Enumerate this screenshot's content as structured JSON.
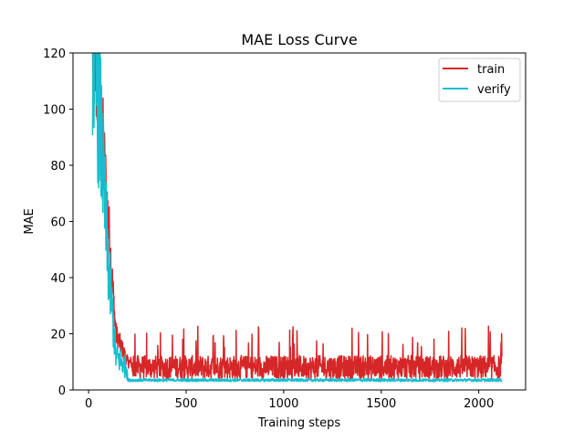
{
  "chart_data": {
    "type": "line",
    "title": "MAE Loss Curve",
    "xlabel": "Training steps",
    "ylabel": "MAE",
    "xlim": [
      -80,
      2240
    ],
    "ylim": [
      0,
      120
    ],
    "xticks": [
      0,
      500,
      1000,
      1500,
      2000
    ],
    "yticks": [
      0,
      20,
      40,
      60,
      80,
      100,
      120
    ],
    "grid": false,
    "legend_position": "top-right",
    "x_range": [
      20,
      2120
    ],
    "series": [
      {
        "name": "train",
        "color": "#d62728",
        "description": "rapid decay from above 120 to ~10 by step ~200, then noisy plateau oscillating mostly between ~4 and ~15 with spikes to ~23",
        "keypoints": [
          {
            "x": 20,
            "y": 125
          },
          {
            "x": 60,
            "y": 100
          },
          {
            "x": 100,
            "y": 60
          },
          {
            "x": 140,
            "y": 20
          },
          {
            "x": 200,
            "y": 10
          },
          {
            "x": 350,
            "y": 8
          },
          {
            "x": 1000,
            "y": 8
          },
          {
            "x": 2120,
            "y": 8
          }
        ],
        "plateau_range": [
          4,
          15
        ],
        "spike_max": 23
      },
      {
        "name": "verify",
        "color": "#17becf",
        "description": "rapid decay from above 120 to ~5 by step ~250, then flat low plateau around 3-4",
        "keypoints": [
          {
            "x": 20,
            "y": 125
          },
          {
            "x": 60,
            "y": 95
          },
          {
            "x": 100,
            "y": 45
          },
          {
            "x": 140,
            "y": 12
          },
          {
            "x": 250,
            "y": 4
          },
          {
            "x": 2120,
            "y": 3.3
          }
        ],
        "plateau_range": [
          3,
          4
        ]
      }
    ]
  }
}
